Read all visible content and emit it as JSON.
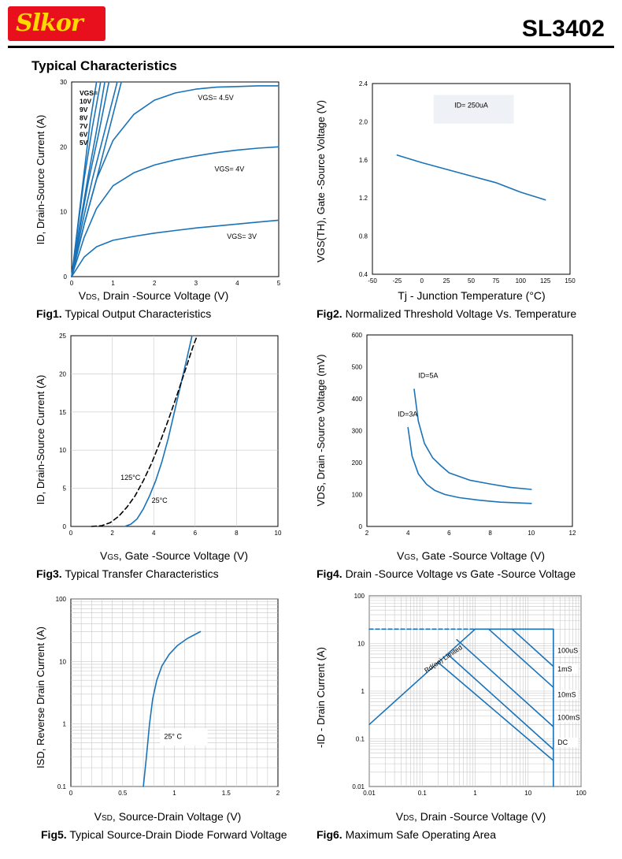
{
  "header": {
    "logo_text": "Slkor",
    "part_number": "SL3402",
    "section_title": "Typical Characteristics"
  },
  "colors": {
    "curve": "#1a73b8",
    "grid": "#c8c8c8",
    "text": "#000000"
  },
  "chart_data": [
    {
      "id": "fig1",
      "type": "line",
      "fig_label": "Fig1.",
      "caption": "Typical Output Characteristics",
      "xlabel_prefix": "V",
      "xlabel_sub": "DS",
      "xlabel_rest": ", Drain -Source Voltage (V)",
      "ylabel": "ID, Drain-Source Current (A)",
      "xlim": [
        0,
        5
      ],
      "ylim": [
        0,
        30
      ],
      "xticks": [
        "0",
        "1",
        "2",
        "3",
        "4",
        "5"
      ],
      "yticks": [
        "0",
        "10",
        "20",
        "30"
      ],
      "legend": [
        "VGS=",
        "10V",
        "9V",
        "8V",
        "7V",
        "6V",
        "5V"
      ],
      "series": [
        {
          "name": "10V",
          "x": [
            0,
            0.15,
            0.3,
            0.45,
            0.6
          ],
          "y": [
            0,
            8,
            16,
            24,
            30
          ]
        },
        {
          "name": "9V",
          "x": [
            0,
            0.15,
            0.3,
            0.5,
            0.7
          ],
          "y": [
            0,
            7.5,
            15,
            23,
            30
          ]
        },
        {
          "name": "8V",
          "x": [
            0,
            0.2,
            0.4,
            0.6,
            0.8
          ],
          "y": [
            0,
            8,
            15.5,
            22.5,
            30
          ]
        },
        {
          "name": "7V",
          "x": [
            0,
            0.2,
            0.4,
            0.65,
            0.9
          ],
          "y": [
            0,
            7.5,
            14.5,
            22,
            30
          ]
        },
        {
          "name": "6V",
          "x": [
            0,
            0.25,
            0.5,
            0.8,
            1.1
          ],
          "y": [
            0,
            8,
            15,
            22.5,
            30
          ]
        },
        {
          "name": "5V",
          "x": [
            0,
            0.3,
            0.6,
            0.9,
            1.2
          ],
          "y": [
            0,
            8,
            15,
            22.5,
            30
          ]
        },
        {
          "name": "VGS= 4.5V",
          "x": [
            0,
            0.3,
            0.6,
            1,
            1.5,
            2,
            2.5,
            3,
            3.5,
            4,
            4.5,
            5
          ],
          "y": [
            0,
            8,
            15,
            21,
            25,
            27.2,
            28.3,
            28.9,
            29.2,
            29.3,
            29.4,
            29.4
          ]
        },
        {
          "name": "VGS= 4V",
          "x": [
            0,
            0.3,
            0.6,
            1,
            1.5,
            2,
            2.5,
            3,
            3.5,
            4,
            4.5,
            5
          ],
          "y": [
            0,
            6,
            10.5,
            14,
            16,
            17.2,
            18,
            18.6,
            19.1,
            19.5,
            19.8,
            20
          ]
        },
        {
          "name": "VGS= 3V",
          "x": [
            0,
            0.3,
            0.6,
            1,
            1.5,
            2,
            2.5,
            3,
            3.5,
            4,
            4.5,
            5
          ],
          "y": [
            0,
            3,
            4.6,
            5.6,
            6.2,
            6.7,
            7.1,
            7.5,
            7.8,
            8.1,
            8.4,
            8.7
          ]
        }
      ],
      "annotations": [
        "VGS= 4.5V",
        "VGS= 4V",
        "VGS= 3V"
      ]
    },
    {
      "id": "fig2",
      "type": "line",
      "fig_label": "Fig2.",
      "caption": "Normalized Threshold Voltage Vs. Temperature",
      "xlabel": "Tj - Junction Temperature (°C)",
      "ylabel": "VGS(TH), Gate -Source Voltage (V)",
      "xlim": [
        -50,
        150
      ],
      "ylim": [
        0.4,
        2.4
      ],
      "xticks": [
        "-50",
        "-25",
        "0",
        "25",
        "50",
        "75",
        "100",
        "125",
        "150"
      ],
      "yticks": [
        "0.4",
        "0.8",
        "1.2",
        "1.6",
        "2.0",
        "2.4"
      ],
      "series": [
        {
          "name": "ID= 250uA",
          "x": [
            -25,
            0,
            25,
            50,
            75,
            100,
            125
          ],
          "y": [
            1.65,
            1.57,
            1.5,
            1.43,
            1.36,
            1.26,
            1.18
          ]
        }
      ],
      "annotations": [
        "ID= 250uA"
      ]
    },
    {
      "id": "fig3",
      "type": "line",
      "fig_label": "Fig3.",
      "caption": "Typical Transfer Characteristics",
      "xlabel_prefix": "V",
      "xlabel_sub": "GS",
      "xlabel_rest": ", Gate -Source Voltage (V)",
      "ylabel": "ID, Drain-Source Current (A)",
      "xlim": [
        0,
        10
      ],
      "ylim": [
        0,
        25
      ],
      "xticks": [
        "0",
        "2",
        "4",
        "6",
        "8",
        "10"
      ],
      "yticks": [
        "0",
        "5",
        "10",
        "15",
        "20",
        "25"
      ],
      "series": [
        {
          "name": "25°C",
          "x": [
            2.6,
            2.9,
            3.2,
            3.5,
            3.8,
            4.1,
            4.4,
            4.7,
            5,
            5.3,
            5.6,
            5.85
          ],
          "y": [
            0,
            0.3,
            1,
            2.3,
            4,
            6,
            8.5,
            11.5,
            15,
            18.5,
            22,
            25
          ]
        },
        {
          "name": "125°C",
          "x": [
            1,
            1.5,
            1.9,
            2.3,
            2.7,
            3.1,
            3.5,
            3.9,
            4.3,
            4.7,
            5.1,
            5.5,
            5.9,
            6.1
          ],
          "y": [
            0,
            0.1,
            0.5,
            1.3,
            2.5,
            4,
            6,
            8.3,
            11,
            13.9,
            17,
            20.3,
            23.6,
            25
          ]
        }
      ],
      "annotations": [
        "125°C",
        "25°C"
      ]
    },
    {
      "id": "fig4",
      "type": "line",
      "fig_label": "Fig4.",
      "caption": "Drain -Source Voltage vs Gate -Source Voltage",
      "xlabel_prefix": "V",
      "xlabel_sub": "GS",
      "xlabel_rest": ", Gate -Source Voltage (V)",
      "ylabel": "VDS, Drain -Source Voltage (mV)",
      "xlim": [
        2,
        12
      ],
      "ylim": [
        0,
        600
      ],
      "xticks": [
        "2",
        "4",
        "6",
        "8",
        "10",
        "12"
      ],
      "yticks": [
        "0",
        "100",
        "200",
        "300",
        "400",
        "500",
        "600"
      ],
      "series": [
        {
          "name": "ID=5A",
          "x": [
            4.3,
            4.5,
            4.8,
            5.2,
            5.6,
            6,
            7,
            8,
            9,
            10
          ],
          "y": [
            430,
            330,
            260,
            215,
            190,
            168,
            145,
            133,
            122,
            116
          ]
        },
        {
          "name": "ID=3A",
          "x": [
            4,
            4.2,
            4.5,
            4.9,
            5.3,
            5.8,
            6.5,
            7.5,
            8.5,
            10
          ],
          "y": [
            310,
            220,
            165,
            132,
            113,
            100,
            90,
            82,
            76,
            72
          ]
        }
      ],
      "annotations": [
        "ID=5A",
        "ID=3A"
      ]
    },
    {
      "id": "fig5",
      "type": "line",
      "fig_label": "Fig5.",
      "caption": "Typical Source-Drain Diode Forward Voltage",
      "xlabel_prefix": "V",
      "xlabel_sub": "SD",
      "xlabel_rest": ", Source-Drain Voltage (V)",
      "ylabel": "ISD, Reverse Drain Current (A)",
      "xscale": "linear",
      "yscale": "log",
      "xlim": [
        0,
        2
      ],
      "ylim": [
        0.1,
        100
      ],
      "xticks": [
        "0",
        "0.5",
        "1",
        "1.5",
        "2"
      ],
      "yticks": [
        "0.1",
        "1",
        "10",
        "100"
      ],
      "series": [
        {
          "name": "25° C",
          "x": [
            0.7,
            0.73,
            0.76,
            0.79,
            0.83,
            0.88,
            0.95,
            1.03,
            1.12,
            1.25
          ],
          "y": [
            0.1,
            0.3,
            1,
            2.5,
            5,
            8.5,
            13,
            18,
            23,
            30
          ]
        }
      ],
      "annotations": [
        "25° C"
      ]
    },
    {
      "id": "fig6",
      "type": "line",
      "fig_label": "Fig6.",
      "caption": "Maximum Safe Operating Area",
      "xlabel_prefix": "V",
      "xlabel_sub": "DS",
      "xlabel_rest": ", Drain -Source Voltage (V)",
      "ylabel": "-ID - Drain Current (A)",
      "xscale": "log",
      "yscale": "log",
      "xlim": [
        0.01,
        100
      ],
      "ylim": [
        0.01,
        100
      ],
      "xticks": [
        "0.01",
        "0.1",
        "1",
        "10",
        "100"
      ],
      "yticks": [
        "0.01",
        "0.1",
        "1",
        "10",
        "100"
      ],
      "series": [
        {
          "name": "Rd(on) Limited",
          "x": [
            0.01,
            1
          ],
          "y": [
            0.2,
            20
          ]
        },
        {
          "name": "ID limit",
          "x": [
            0.01,
            30
          ],
          "y": [
            20,
            20
          ]
        },
        {
          "name": "VDS limit",
          "x": [
            30,
            30
          ],
          "y": [
            0.01,
            20
          ]
        },
        {
          "name": "100uS",
          "x": [
            5,
            30
          ],
          "y": [
            20,
            3.3
          ]
        },
        {
          "name": "1mS",
          "x": [
            1.8,
            30
          ],
          "y": [
            20,
            1.2
          ]
        },
        {
          "name": "10mS",
          "x": [
            0.45,
            30
          ],
          "y": [
            12,
            0.18
          ]
        },
        {
          "name": "100mS",
          "x": [
            0.3,
            30
          ],
          "y": [
            6,
            0.06
          ]
        },
        {
          "name": "DC",
          "x": [
            0.2,
            30
          ],
          "y": [
            4,
            0.035
          ]
        }
      ],
      "annotations": [
        "Rd(on) Limited",
        "100uS",
        "1mS",
        "10mS",
        "100mS",
        "DC"
      ]
    }
  ]
}
